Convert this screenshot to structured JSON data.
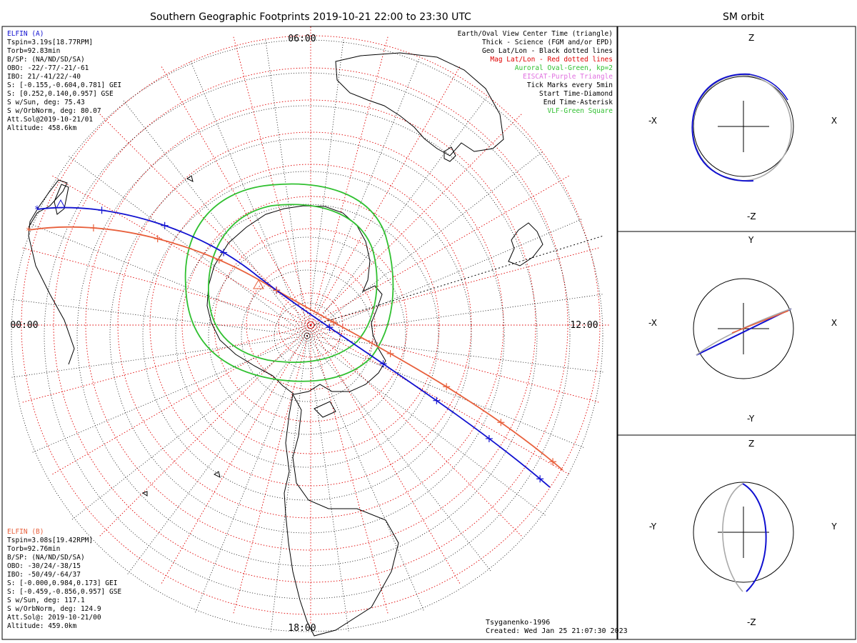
{
  "title": "Southern Geographic Footprints 2019-10-21 22:00 to 23:30 UTC",
  "sm_title": "SM orbit",
  "hour_labels": {
    "top": "06:00",
    "left": "00:00",
    "right": "12:00",
    "bottom": "18:00"
  },
  "elfin_a": {
    "color": "#1010d0",
    "lines": [
      "ELFIN (A)",
      "Tspin=3.19s[18.77RPM]",
      "Torb=92.83min",
      "B/SP: (NA/ND/SD/SA)",
      "OBO: -22/-77/-21/-61",
      "IBO: 21/-41/22/-40",
      "S: [-0.155,-0.604,0.781] GEI",
      "S: [0.252,0.140,0.957] GSE",
      "S w/Sun, deg: 75.43",
      "S w/OrbNorm, deg: 80.07",
      "Att.Sol@2019-10-21/01",
      "Altitude: 458.6km"
    ]
  },
  "elfin_b": {
    "color": "#e8603c",
    "lines": [
      "ELFIN (B)",
      "Tspin=3.08s[19.42RPM]",
      "Torb=92.76min",
      "B/SP: (NA/ND/SD/SA)",
      "OBO: -30/24/-38/15",
      "IBO: -50/49/-64/37",
      "S: [-0.000,0.984,0.173] GEI",
      "S: [-0.459,-0.856,0.957] GSE",
      "S w/Sun, deg: 117.1",
      "S w/OrbNorm, deg: 124.9",
      "Att.Sol@: 2019-10-21/00",
      "Altitude: 459.0km"
    ]
  },
  "legend": [
    {
      "text": "Earth/Oval View Center Time (triangle)",
      "color": "#000000"
    },
    {
      "text": "Thick - Science (FGM and/or EPD)",
      "color": "#000000"
    },
    {
      "text": "Geo Lat/Lon - Black dotted lines",
      "color": "#000000"
    },
    {
      "text": "Mag Lat/Lon - Red dotted lines",
      "color": "#e00000"
    },
    {
      "text": "Auroral Oval-Green, kp=2",
      "color": "#30c030"
    },
    {
      "text": "EISCAT-Purple Triangle",
      "color": "#e070e0"
    },
    {
      "text": "Tick Marks every 5min",
      "color": "#000000"
    },
    {
      "text": "Start Time-Diamond",
      "color": "#000000"
    },
    {
      "text": "End Time-Asterisk",
      "color": "#000000"
    },
    {
      "text": "VLF-Green Square",
      "color": "#30c030"
    }
  ],
  "footer": {
    "model": "Tsyganenko-1996",
    "created": "Created: Wed Jan 25 21:07:30 2023"
  },
  "panels": [
    {
      "top": "Z",
      "bottom": "-Z",
      "left": "-X",
      "right": "X"
    },
    {
      "top": "Y",
      "bottom": "-Y",
      "left": "-X",
      "right": "X"
    },
    {
      "top": "Z",
      "bottom": "-Z",
      "left": "-Y",
      "right": "Y"
    }
  ],
  "colors": {
    "blue": "#1010d0",
    "orange": "#e8603c",
    "green": "#30c030",
    "grid_red": "#e00000"
  }
}
